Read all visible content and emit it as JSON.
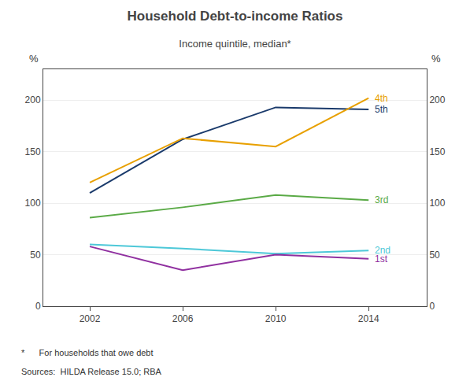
{
  "chart_data": {
    "type": "line",
    "title": "Household Debt-to-income Ratios",
    "subtitle": "Income quintile, median*",
    "x": [
      2002,
      2006,
      2010,
      2014
    ],
    "series": [
      {
        "name": "5th",
        "color": "#1a3a6b",
        "values": [
          110,
          162,
          193,
          191
        ]
      },
      {
        "name": "4th",
        "color": "#e8a000",
        "values": [
          120,
          163,
          155,
          202
        ]
      },
      {
        "name": "3rd",
        "color": "#5aaa46",
        "values": [
          86,
          96,
          108,
          103
        ]
      },
      {
        "name": "2nd",
        "color": "#4dc8d8",
        "values": [
          60,
          56,
          51,
          54
        ]
      },
      {
        "name": "1st",
        "color": "#9030a0",
        "values": [
          58,
          35,
          50,
          46
        ]
      }
    ],
    "xlim": [
      2000,
      2016.5
    ],
    "xticks": [
      2002,
      2006,
      2010,
      2014
    ],
    "ylim": [
      0,
      230
    ],
    "yticks": [
      0,
      50,
      100,
      150,
      200
    ],
    "y2lim": [
      0,
      230
    ],
    "y2ticks": [
      0,
      50,
      100,
      150,
      200
    ],
    "ylabel": "%",
    "y2label": "%",
    "grid": true,
    "footnotes": [
      "*      For households that owe debt",
      "Sources:  HILDA Release 15.0; RBA"
    ]
  }
}
